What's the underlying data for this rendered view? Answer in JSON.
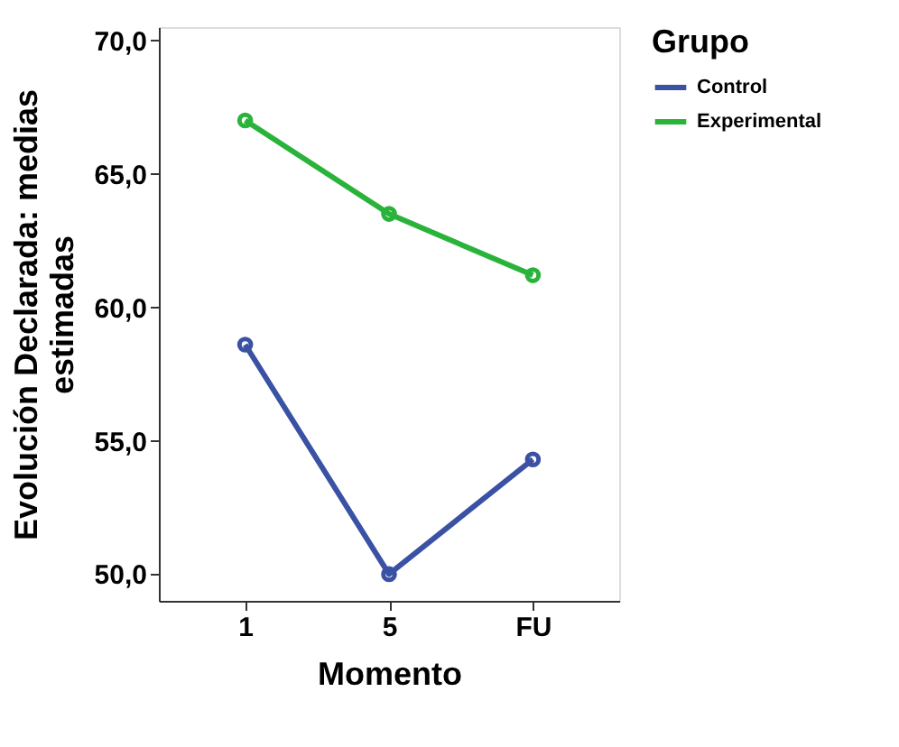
{
  "chart_data": {
    "type": "line",
    "xlabel": "Momento",
    "ylabel": "Evolución Declarada: medias estimadas",
    "legend_title": "Grupo",
    "categories": [
      "1",
      "5",
      "FU"
    ],
    "series": [
      {
        "name": "Control",
        "color": "#3b51a3",
        "values": [
          58.6,
          50.0,
          54.3
        ]
      },
      {
        "name": "Experimental",
        "color": "#2ab33a",
        "values": [
          67.0,
          63.5,
          61.2
        ]
      }
    ],
    "ylim": [
      49,
      70.5
    ],
    "yticks": [
      {
        "value": 50,
        "label": "50,0"
      },
      {
        "value": 55,
        "label": "55,0"
      },
      {
        "value": 60,
        "label": "60,0"
      },
      {
        "value": 65,
        "label": "65,0"
      },
      {
        "value": 70,
        "label": "70,0"
      }
    ],
    "grid": false,
    "legend": "top right",
    "marker": "circle",
    "line_style": "solid"
  }
}
